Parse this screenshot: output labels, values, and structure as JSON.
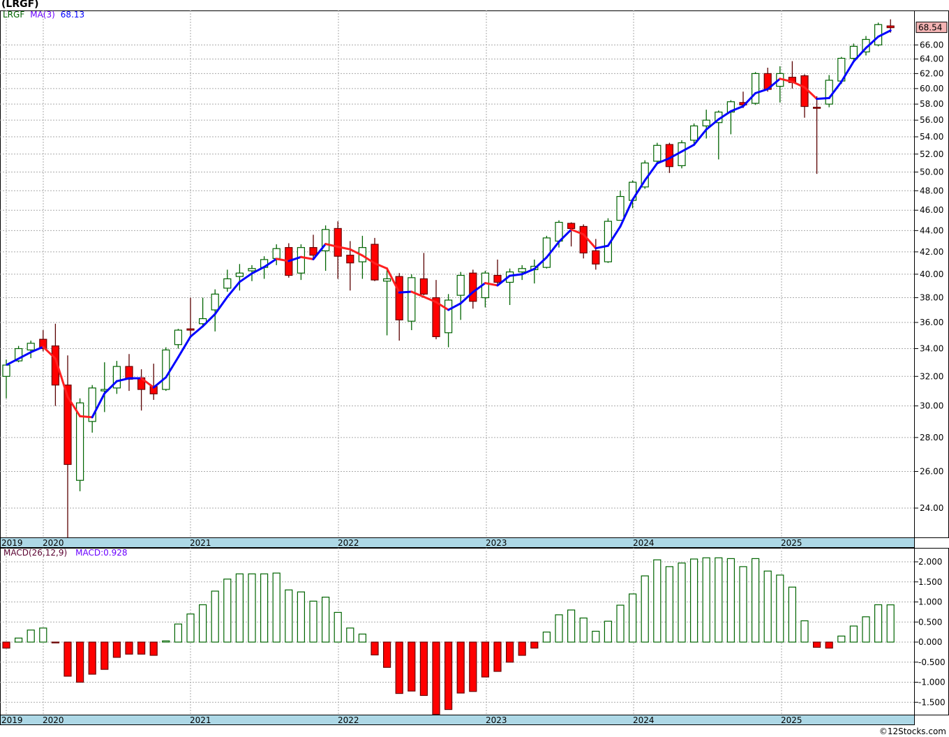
{
  "title": "(LRGF)",
  "copyright": "©12Stocks.com",
  "colors": {
    "up": "#006400",
    "down": "#ff0000",
    "ma_up": "#0000ff",
    "ma_down": "#ff2020",
    "date_strip": "#add8e6",
    "last_price_bg": "#f4b4b4"
  },
  "chart_data": [
    {
      "type": "candlestick",
      "title": "(LRGF)",
      "legend": {
        "symbol": "LRGF",
        "ma_label": "MA(3)",
        "ma_value": "68.13"
      },
      "scale": "log",
      "ylim": [
        22.5,
        71
      ],
      "yticks": [
        24,
        26,
        28,
        30,
        32,
        34,
        36,
        38,
        40,
        42,
        44,
        46,
        48,
        50,
        52,
        54,
        56,
        58,
        60,
        62,
        64,
        66
      ],
      "ytick_labels": [
        "24.00",
        "26.00",
        "28.00",
        "30.00",
        "32.00",
        "34.00",
        "36.00",
        "38.00",
        "40.00",
        "42.00",
        "44.00",
        "46.00",
        "48.00",
        "50.00",
        "52.00",
        "54.00",
        "56.00",
        "58.00",
        "60.00",
        "62.00",
        "64.00",
        "66.00"
      ],
      "last_price": "68.54",
      "x_labels": [
        "2019",
        "2020",
        "2021",
        "2022",
        "2023",
        "2024",
        "2025"
      ],
      "candles": [
        {
          "d": "2019-10",
          "o": 32.0,
          "h": 33.2,
          "l": 30.5,
          "c": 32.8
        },
        {
          "d": "2019-11",
          "o": 33.1,
          "h": 34.2,
          "l": 33.0,
          "c": 34.0
        },
        {
          "d": "2019-12",
          "o": 33.9,
          "h": 34.6,
          "l": 33.3,
          "c": 34.4
        },
        {
          "d": "2020-01",
          "o": 34.7,
          "h": 35.4,
          "l": 33.8,
          "c": 34.0
        },
        {
          "d": "2020-02",
          "o": 34.2,
          "h": 35.9,
          "l": 30.0,
          "c": 31.4
        },
        {
          "d": "2020-03",
          "o": 31.4,
          "h": 33.5,
          "l": 22.5,
          "c": 26.4
        },
        {
          "d": "2020-04",
          "o": 25.5,
          "h": 30.5,
          "l": 24.9,
          "c": 30.2
        },
        {
          "d": "2020-05",
          "o": 29.0,
          "h": 31.4,
          "l": 28.3,
          "c": 31.2
        },
        {
          "d": "2020-06",
          "o": 31.0,
          "h": 33.0,
          "l": 29.6,
          "c": 31.1
        },
        {
          "d": "2020-07",
          "o": 31.2,
          "h": 33.1,
          "l": 30.8,
          "c": 32.7
        },
        {
          "d": "2020-08",
          "o": 32.7,
          "h": 33.6,
          "l": 31.0,
          "c": 31.8
        },
        {
          "d": "2020-09",
          "o": 31.9,
          "h": 32.5,
          "l": 29.7,
          "c": 31.1
        },
        {
          "d": "2020-10",
          "o": 31.3,
          "h": 32.9,
          "l": 30.4,
          "c": 30.8
        },
        {
          "d": "2020-11",
          "o": 31.1,
          "h": 34.1,
          "l": 31.0,
          "c": 33.9
        },
        {
          "d": "2020-12",
          "o": 34.3,
          "h": 35.5,
          "l": 34.0,
          "c": 35.4
        },
        {
          "d": "2021-01",
          "o": 35.5,
          "h": 38.0,
          "l": 34.8,
          "c": 35.4
        },
        {
          "d": "2021-02",
          "o": 35.9,
          "h": 38.0,
          "l": 35.7,
          "c": 36.3
        },
        {
          "d": "2021-03",
          "o": 37.0,
          "h": 38.7,
          "l": 35.3,
          "c": 38.3
        },
        {
          "d": "2021-04",
          "o": 38.8,
          "h": 40.4,
          "l": 38.5,
          "c": 39.6
        },
        {
          "d": "2021-05",
          "o": 39.8,
          "h": 40.9,
          "l": 38.6,
          "c": 40.1
        },
        {
          "d": "2021-06",
          "o": 40.3,
          "h": 40.8,
          "l": 39.4,
          "c": 40.5
        },
        {
          "d": "2021-07",
          "o": 40.6,
          "h": 41.6,
          "l": 39.6,
          "c": 41.3
        },
        {
          "d": "2021-08",
          "o": 41.4,
          "h": 42.7,
          "l": 40.8,
          "c": 42.3
        },
        {
          "d": "2021-09",
          "o": 42.4,
          "h": 42.8,
          "l": 39.7,
          "c": 39.9
        },
        {
          "d": "2021-10",
          "o": 40.1,
          "h": 42.7,
          "l": 39.5,
          "c": 42.4
        },
        {
          "d": "2021-11",
          "o": 42.4,
          "h": 43.6,
          "l": 41.3,
          "c": 41.7
        },
        {
          "d": "2021-12",
          "o": 42.1,
          "h": 44.5,
          "l": 40.3,
          "c": 44.1
        },
        {
          "d": "2022-01",
          "o": 44.2,
          "h": 44.9,
          "l": 39.6,
          "c": 41.6
        },
        {
          "d": "2022-02",
          "o": 41.7,
          "h": 43.0,
          "l": 38.6,
          "c": 41.0
        },
        {
          "d": "2022-03",
          "o": 41.1,
          "h": 43.5,
          "l": 39.6,
          "c": 42.4
        },
        {
          "d": "2022-04",
          "o": 42.7,
          "h": 43.3,
          "l": 39.4,
          "c": 39.5
        },
        {
          "d": "2022-05",
          "o": 39.4,
          "h": 40.6,
          "l": 35.0,
          "c": 39.6
        },
        {
          "d": "2022-06",
          "o": 39.8,
          "h": 40.1,
          "l": 34.6,
          "c": 36.2
        },
        {
          "d": "2022-07",
          "o": 36.1,
          "h": 40.0,
          "l": 35.4,
          "c": 39.7
        },
        {
          "d": "2022-08",
          "o": 39.6,
          "h": 41.9,
          "l": 38.2,
          "c": 38.3
        },
        {
          "d": "2022-09",
          "o": 38.0,
          "h": 39.5,
          "l": 34.7,
          "c": 34.9
        },
        {
          "d": "2022-10",
          "o": 35.2,
          "h": 38.3,
          "l": 34.1,
          "c": 37.8
        },
        {
          "d": "2022-11",
          "o": 38.2,
          "h": 40.2,
          "l": 36.2,
          "c": 39.9
        },
        {
          "d": "2022-12",
          "o": 40.1,
          "h": 40.4,
          "l": 37.1,
          "c": 37.7
        },
        {
          "d": "2023-01",
          "o": 38.0,
          "h": 40.3,
          "l": 37.2,
          "c": 40.1
        },
        {
          "d": "2023-02",
          "o": 39.9,
          "h": 41.3,
          "l": 39.0,
          "c": 39.3
        },
        {
          "d": "2023-03",
          "o": 39.3,
          "h": 40.5,
          "l": 37.4,
          "c": 40.2
        },
        {
          "d": "2023-04",
          "o": 40.2,
          "h": 40.8,
          "l": 39.5,
          "c": 40.5
        },
        {
          "d": "2023-05",
          "o": 40.4,
          "h": 41.3,
          "l": 39.2,
          "c": 40.7
        },
        {
          "d": "2023-06",
          "o": 40.6,
          "h": 43.5,
          "l": 40.5,
          "c": 43.3
        },
        {
          "d": "2023-07",
          "o": 43.0,
          "h": 45.0,
          "l": 42.4,
          "c": 44.8
        },
        {
          "d": "2023-08",
          "o": 44.7,
          "h": 44.8,
          "l": 42.5,
          "c": 44.2
        },
        {
          "d": "2023-09",
          "o": 44.4,
          "h": 44.6,
          "l": 41.4,
          "c": 41.9
        },
        {
          "d": "2023-10",
          "o": 42.1,
          "h": 43.2,
          "l": 40.4,
          "c": 40.9
        },
        {
          "d": "2023-11",
          "o": 41.1,
          "h": 45.2,
          "l": 41.0,
          "c": 44.9
        },
        {
          "d": "2023-12",
          "o": 45.0,
          "h": 48.0,
          "l": 45.0,
          "c": 47.4
        },
        {
          "d": "2024-01",
          "o": 47.0,
          "h": 49.1,
          "l": 46.2,
          "c": 48.9
        },
        {
          "d": "2024-02",
          "o": 48.4,
          "h": 51.3,
          "l": 48.2,
          "c": 51.0
        },
        {
          "d": "2024-03",
          "o": 51.2,
          "h": 53.3,
          "l": 50.9,
          "c": 53.0
        },
        {
          "d": "2024-04",
          "o": 53.1,
          "h": 53.3,
          "l": 49.9,
          "c": 50.6
        },
        {
          "d": "2024-05",
          "o": 50.7,
          "h": 53.6,
          "l": 50.4,
          "c": 53.3
        },
        {
          "d": "2024-06",
          "o": 53.6,
          "h": 55.6,
          "l": 53.2,
          "c": 55.3
        },
        {
          "d": "2024-07",
          "o": 55.3,
          "h": 57.3,
          "l": 53.8,
          "c": 56.0
        },
        {
          "d": "2024-08",
          "o": 55.7,
          "h": 57.2,
          "l": 51.4,
          "c": 57.0
        },
        {
          "d": "2024-09",
          "o": 57.0,
          "h": 58.5,
          "l": 54.3,
          "c": 58.3
        },
        {
          "d": "2024-10",
          "o": 58.2,
          "h": 59.6,
          "l": 57.5,
          "c": 57.9
        },
        {
          "d": "2024-11",
          "o": 58.1,
          "h": 62.2,
          "l": 57.9,
          "c": 62.0
        },
        {
          "d": "2024-12",
          "o": 62.0,
          "h": 62.8,
          "l": 59.6,
          "c": 59.9
        },
        {
          "d": "2025-01",
          "o": 60.3,
          "h": 63.0,
          "l": 58.2,
          "c": 62.0
        },
        {
          "d": "2025-02",
          "o": 61.5,
          "h": 63.7,
          "l": 60.0,
          "c": 60.8
        },
        {
          "d": "2025-03",
          "o": 61.7,
          "h": 61.9,
          "l": 56.3,
          "c": 57.7
        },
        {
          "d": "2025-04",
          "o": 57.6,
          "h": 59.0,
          "l": 49.8,
          "c": 57.5
        },
        {
          "d": "2025-05",
          "o": 58.0,
          "h": 61.8,
          "l": 57.6,
          "c": 61.1
        },
        {
          "d": "2025-06",
          "o": 61.0,
          "h": 64.3,
          "l": 60.6,
          "c": 64.1
        },
        {
          "d": "2025-07",
          "o": 64.1,
          "h": 66.2,
          "l": 63.8,
          "c": 65.8
        },
        {
          "d": "2025-08",
          "o": 65.0,
          "h": 67.3,
          "l": 64.5,
          "c": 66.8
        },
        {
          "d": "2025-09",
          "o": 66.0,
          "h": 69.3,
          "l": 65.8,
          "c": 69.0
        },
        {
          "d": "2025-10",
          "o": 68.8,
          "h": 69.8,
          "l": 67.8,
          "c": 68.54
        }
      ]
    },
    {
      "type": "bar",
      "title": "MACD(26,12,9)",
      "legend": {
        "label": "MACD(26,12,9)",
        "value_label": "MACD:0.928"
      },
      "ylim": [
        -1.8,
        2.3
      ],
      "yticks": [
        2.0,
        1.5,
        1.0,
        0.5,
        0.0,
        -0.5,
        -1.0,
        -1.5
      ],
      "ytick_labels": [
        "2.000",
        "1.500",
        "1.000",
        "0.500",
        "0.000",
        "-0.500",
        "-1.000",
        "-1.500"
      ],
      "x_labels": [
        "2019",
        "2020",
        "2021",
        "2022",
        "2023",
        "2024",
        "2025"
      ],
      "values": [
        -0.15,
        0.1,
        0.3,
        0.35,
        -0.02,
        -0.85,
        -1.0,
        -0.8,
        -0.68,
        -0.38,
        -0.3,
        -0.3,
        -0.33,
        0.03,
        0.45,
        0.7,
        0.93,
        1.27,
        1.57,
        1.7,
        1.7,
        1.7,
        1.72,
        1.3,
        1.25,
        1.02,
        1.12,
        0.74,
        0.35,
        0.2,
        -0.32,
        -0.63,
        -1.28,
        -1.22,
        -1.33,
        -1.8,
        -1.68,
        -1.27,
        -1.23,
        -0.87,
        -0.73,
        -0.5,
        -0.33,
        -0.15,
        0.25,
        0.68,
        0.8,
        0.6,
        0.27,
        0.52,
        0.92,
        1.2,
        1.65,
        2.05,
        1.88,
        1.97,
        2.07,
        2.1,
        2.1,
        2.08,
        1.88,
        2.08,
        1.77,
        1.67,
        1.37,
        0.53,
        -0.13,
        -0.15,
        0.15,
        0.4,
        0.63,
        0.93,
        0.928
      ]
    }
  ]
}
